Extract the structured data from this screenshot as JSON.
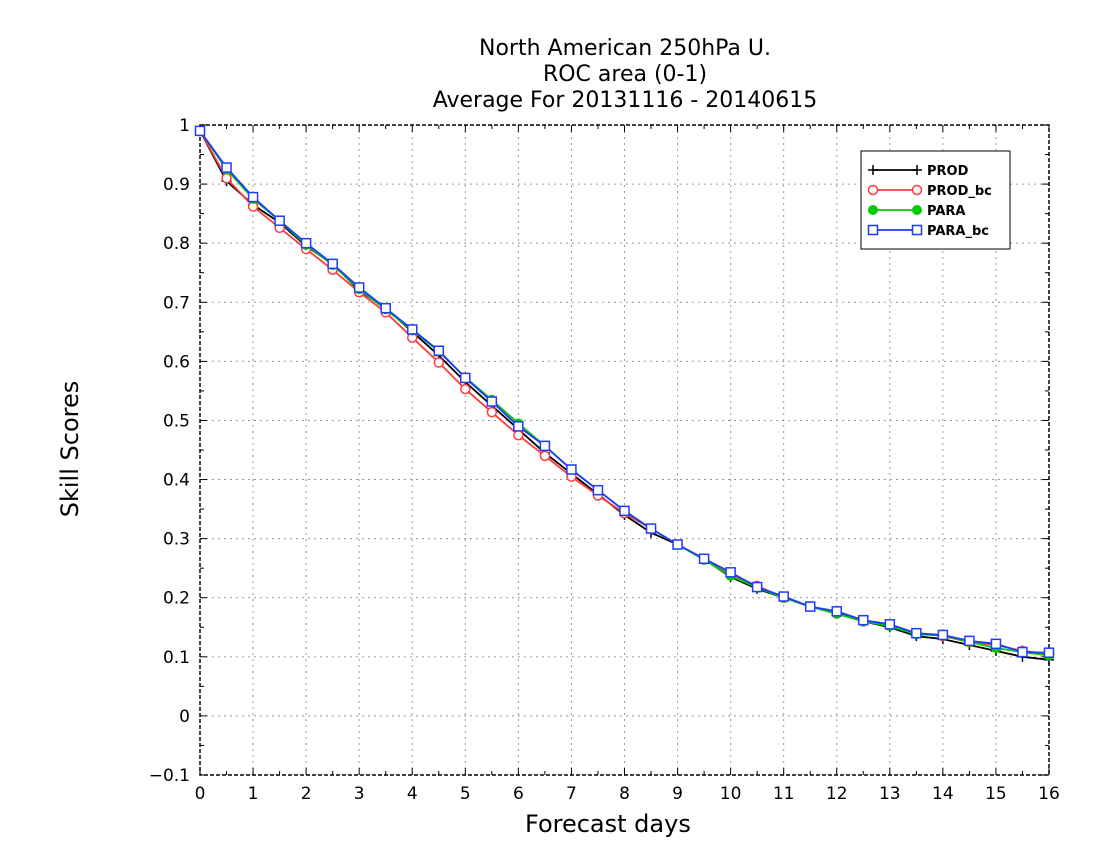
{
  "chart_data": {
    "type": "line",
    "title": [
      "North American 250hPa U.",
      "ROC area (0-1)",
      "Average For 20131116 - 20140615"
    ],
    "xlabel": "Forecast days",
    "ylabel": "Skill Scores",
    "xlim": [
      0,
      16
    ],
    "ylim": [
      -0.1,
      1
    ],
    "x_ticks": [
      "0",
      "1",
      "2",
      "3",
      "4",
      "5",
      "6",
      "7",
      "8",
      "9",
      "10",
      "11",
      "12",
      "13",
      "14",
      "15",
      "16"
    ],
    "y_ticks": [
      "−0.1",
      "0",
      "0.1",
      "0.2",
      "0.3",
      "0.4",
      "0.5",
      "0.6",
      "0.7",
      "0.8",
      "0.9",
      "1"
    ],
    "grid": true,
    "legend_position": "top-right",
    "x": [
      0,
      0.5,
      1,
      1.5,
      2,
      2.5,
      3,
      3.5,
      4,
      4.5,
      5,
      5.5,
      6,
      6.5,
      7,
      7.5,
      8,
      8.5,
      9,
      9.5,
      10,
      10.5,
      11,
      11.5,
      12,
      12.5,
      13,
      13.5,
      14,
      14.5,
      15,
      15.5,
      16
    ],
    "series": [
      {
        "name": "PROD",
        "color": "#000000",
        "marker": "plus",
        "values": [
          0.99,
          0.905,
          0.865,
          0.835,
          0.795,
          0.765,
          0.72,
          0.69,
          0.65,
          0.61,
          0.565,
          0.525,
          0.485,
          0.445,
          0.41,
          0.375,
          0.34,
          0.31,
          0.29,
          0.265,
          0.235,
          0.215,
          0.2,
          0.185,
          0.175,
          0.16,
          0.15,
          0.135,
          0.13,
          0.12,
          0.11,
          0.1,
          0.095
        ]
      },
      {
        "name": "PROD_bc",
        "color": "#ff3b3b",
        "marker": "circle",
        "values": [
          0.99,
          0.91,
          0.862,
          0.826,
          0.79,
          0.755,
          0.717,
          0.683,
          0.64,
          0.598,
          0.553,
          0.514,
          0.475,
          0.44,
          0.405,
          0.373,
          0.343,
          0.317,
          0.29,
          0.265,
          0.24,
          0.22,
          0.2,
          0.185,
          0.173,
          0.16,
          0.153,
          0.14,
          0.135,
          0.125,
          0.12,
          0.11,
          0.105
        ]
      },
      {
        "name": "PARA",
        "color": "#00cc00",
        "marker": "dot",
        "values": [
          0.99,
          0.925,
          0.875,
          0.838,
          0.797,
          0.763,
          0.722,
          0.688,
          0.652,
          0.617,
          0.573,
          0.535,
          0.495,
          0.457,
          0.417,
          0.382,
          0.347,
          0.317,
          0.29,
          0.264,
          0.237,
          0.217,
          0.2,
          0.185,
          0.173,
          0.16,
          0.152,
          0.138,
          0.136,
          0.125,
          0.115,
          0.108,
          0.102
        ]
      },
      {
        "name": "PARA_bc",
        "color": "#1f3bff",
        "marker": "square",
        "values": [
          0.99,
          0.928,
          0.878,
          0.838,
          0.8,
          0.765,
          0.725,
          0.69,
          0.654,
          0.618,
          0.572,
          0.532,
          0.49,
          0.457,
          0.417,
          0.382,
          0.347,
          0.317,
          0.29,
          0.266,
          0.243,
          0.218,
          0.202,
          0.185,
          0.177,
          0.162,
          0.155,
          0.14,
          0.137,
          0.127,
          0.122,
          0.108,
          0.107
        ]
      }
    ]
  }
}
